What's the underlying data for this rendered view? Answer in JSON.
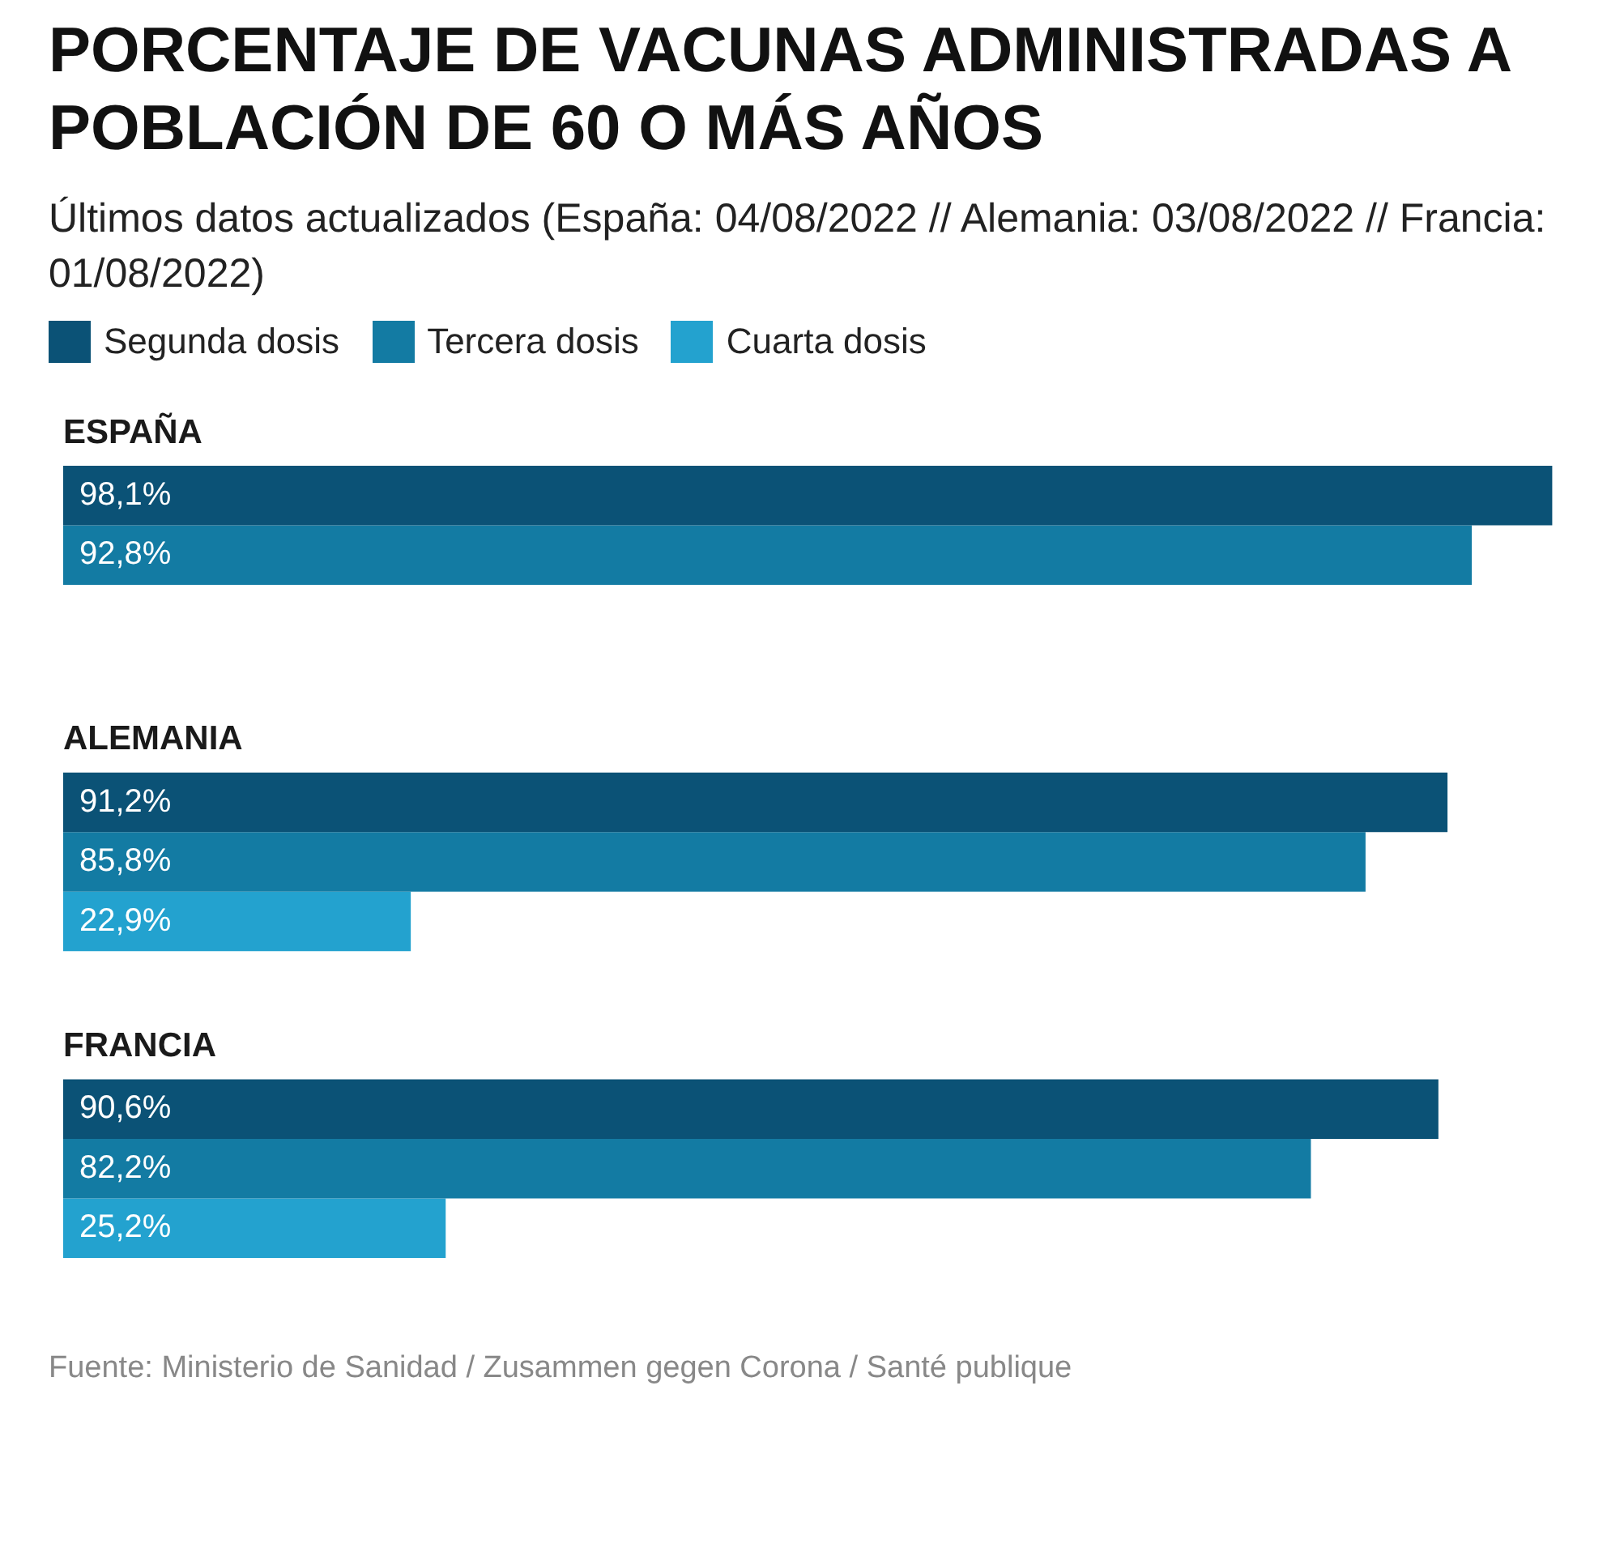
{
  "chart_data": {
    "type": "bar",
    "orientation": "horizontal",
    "title": "PORCENTAJE DE VACUNAS ADMINISTRADAS A POBLACIÓN DE 60 O MÁS AÑOS",
    "subtitle": "Últimos datos actualizados (España: 04/08/2022 // Alemania: 03/08/2022 // Francia: 01/08/2022)",
    "categories": [
      "ESPAÑA",
      "ALEMANIA",
      "FRANCIA"
    ],
    "series": [
      {
        "name": "Segunda dosis",
        "color": "#0b5276",
        "values": [
          98.1,
          91.2,
          90.6
        ],
        "value_labels": [
          "98,1%",
          "91,2%",
          "90,6%"
        ]
      },
      {
        "name": "Tercera dosis",
        "color": "#137ba3",
        "values": [
          92.8,
          85.8,
          82.2
        ],
        "value_labels": [
          "92,8%",
          "85,8%",
          "82,2%"
        ]
      },
      {
        "name": "Cuarta dosis",
        "color": "#23a2cf",
        "values": [
          null,
          22.9,
          25.2
        ],
        "value_labels": [
          null,
          "22,9%",
          "25,2%"
        ]
      }
    ],
    "legend": "top",
    "annotations": [
      "Fuente: Ministerio de Sanidad / Zusammen gegen Corona / Santé publique"
    ]
  }
}
